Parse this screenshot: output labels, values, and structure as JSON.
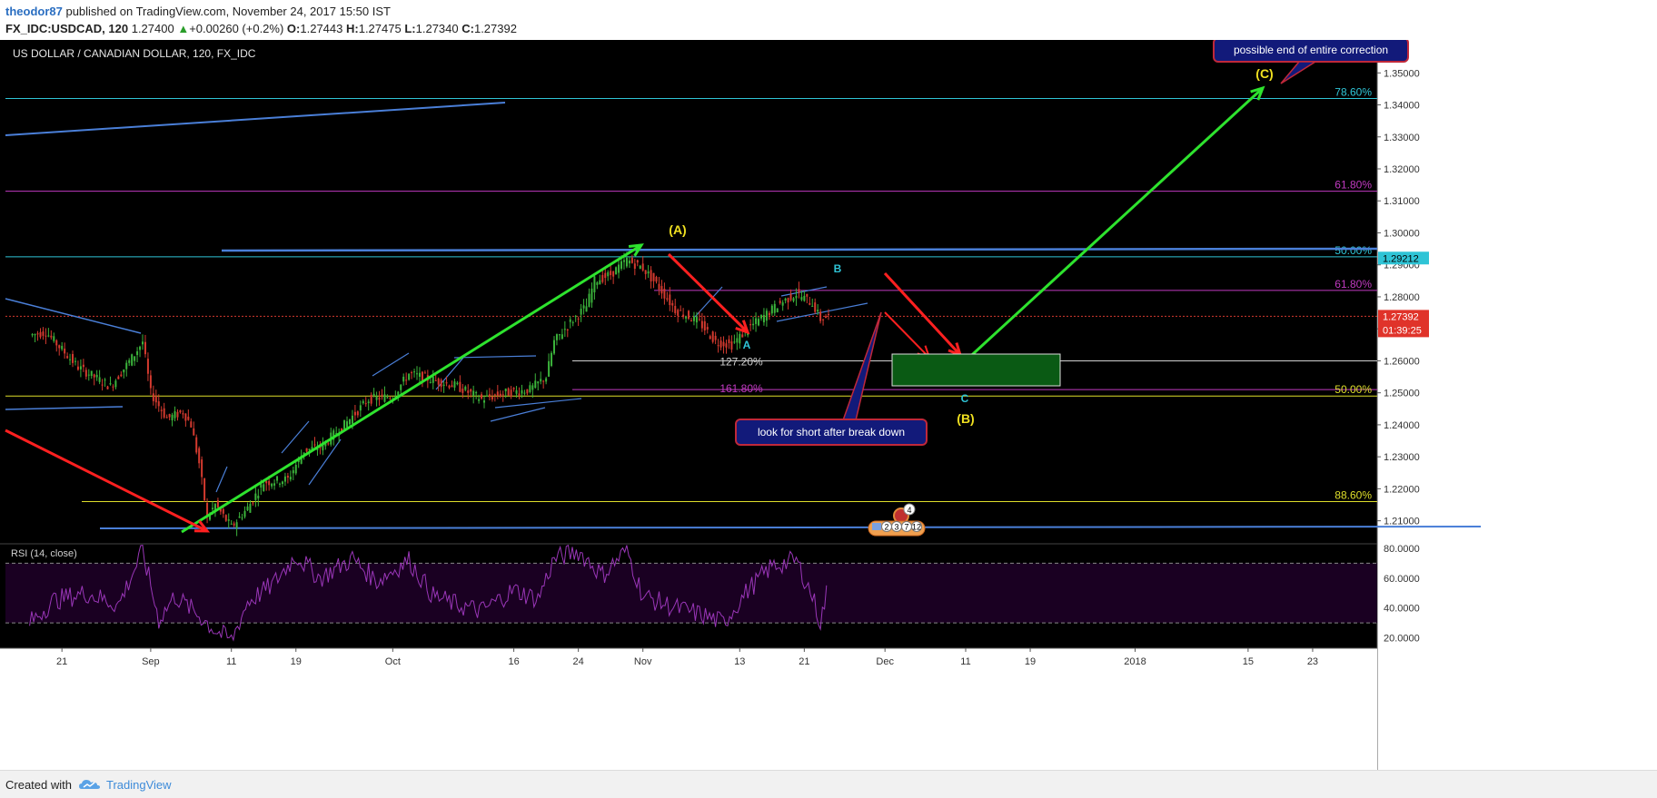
{
  "header": {
    "user": "theodor87",
    "published": "published on TradingView.com, November 24, 2017 15:50 IST",
    "symbol": "FX_IDC:USDCAD, 120",
    "last": "1.27400",
    "arrow": "▲",
    "change": "+0.00260 (+0.2%)",
    "o_label": "O:",
    "o": "1.27443",
    "h_label": "H:",
    "h": "1.27475",
    "l_label": "L:",
    "l": "1.27340",
    "c_label": "C:",
    "c": "1.27392"
  },
  "footer": {
    "created": "Created with",
    "brand": "TradingView",
    "logo_icon": "tradingview-cloud-icon"
  },
  "colors": {
    "bg": "#000000",
    "up": "#3bb33b",
    "down": "#d43a2f",
    "green_arrow": "#2ee32e",
    "red_arrow": "#ff2020",
    "trend": "#4a7fd8",
    "fib_cyan": "#2fc4d6",
    "fib_magenta": "#c03ac0",
    "fib_yellow": "#dede2a",
    "rsi": "#9a36b8"
  },
  "chart_data": {
    "type": "candlestick",
    "title": "US DOLLAR / CANADIAN DOLLAR, 120, FX_IDC",
    "ylim": [
      1.2028,
      1.3603
    ],
    "y_ticks": [
      "1.35000",
      "1.34000",
      "1.33000",
      "1.32000",
      "1.31000",
      "1.30000",
      "1.29000",
      "1.28000",
      "1.27000",
      "1.26000",
      "1.25000",
      "1.24000",
      "1.23000",
      "1.22000",
      "1.21000"
    ],
    "x_ticks": [
      "21",
      "Sep",
      "11",
      "19",
      "Oct",
      "16",
      "24",
      "Nov",
      "13",
      "21",
      "Dec",
      "11",
      "19",
      "2018",
      "15",
      "23"
    ],
    "x_tick_dates": [
      "2017-08-21",
      "2017-09-01",
      "2017-09-11",
      "2017-09-19",
      "2017-10-01",
      "2017-10-16",
      "2017-10-24",
      "2017-11-01",
      "2017-11-13",
      "2017-11-21",
      "2017-12-01",
      "2017-12-11",
      "2017-12-19",
      "2018-01-01",
      "2018-01-15",
      "2018-01-23"
    ],
    "price_path": [
      [
        "2017-08-17",
        1.268
      ],
      [
        "2017-08-19",
        1.269
      ],
      [
        "2017-08-23",
        1.258
      ],
      [
        "2017-08-27",
        1.252
      ],
      [
        "2017-08-30",
        1.262
      ],
      [
        "2017-08-31",
        1.266
      ],
      [
        "2017-09-01",
        1.25
      ],
      [
        "2017-09-03",
        1.242
      ],
      [
        "2017-09-05",
        1.244
      ],
      [
        "2017-09-06",
        1.24
      ],
      [
        "2017-09-07",
        1.228
      ],
      [
        "2017-09-08",
        1.211
      ],
      [
        "2017-09-09",
        1.215
      ],
      [
        "2017-09-11",
        1.208
      ],
      [
        "2017-09-13",
        1.214
      ],
      [
        "2017-09-15",
        1.222
      ],
      [
        "2017-09-18",
        1.223
      ],
      [
        "2017-09-20",
        1.232
      ],
      [
        "2017-09-22",
        1.233
      ],
      [
        "2017-09-25",
        1.24
      ],
      [
        "2017-09-28",
        1.248
      ],
      [
        "2017-10-01",
        1.249
      ],
      [
        "2017-10-03",
        1.256
      ],
      [
        "2017-10-06",
        1.254
      ],
      [
        "2017-10-09",
        1.252
      ],
      [
        "2017-10-12",
        1.248
      ],
      [
        "2017-10-15",
        1.25
      ],
      [
        "2017-10-18",
        1.251
      ],
      [
        "2017-10-20",
        1.255
      ],
      [
        "2017-10-21",
        1.266
      ],
      [
        "2017-10-23",
        1.272
      ],
      [
        "2017-10-25",
        1.277
      ],
      [
        "2017-10-26",
        1.285
      ],
      [
        "2017-10-28",
        1.287
      ],
      [
        "2017-10-30",
        1.2915
      ],
      [
        "2017-11-01",
        1.289
      ],
      [
        "2017-11-03",
        1.283
      ],
      [
        "2017-11-05",
        1.276
      ],
      [
        "2017-11-08",
        1.272
      ],
      [
        "2017-11-10",
        1.266
      ],
      [
        "2017-11-12",
        1.265
      ],
      [
        "2017-11-14",
        1.27
      ],
      [
        "2017-11-16",
        1.274
      ],
      [
        "2017-11-18",
        1.278
      ],
      [
        "2017-11-20",
        1.281
      ],
      [
        "2017-11-22",
        1.278
      ],
      [
        "2017-11-23",
        1.273
      ],
      [
        "2017-11-24",
        1.2739
      ]
    ],
    "rsi": {
      "label": "RSI (14, close)",
      "ylim": [
        13,
        83
      ],
      "ticks": [
        "80.0000",
        "60.0000",
        "40.0000",
        "20.0000"
      ],
      "bands": [
        70,
        30
      ],
      "path": [
        [
          "2017-08-17",
          30
        ],
        [
          "2017-08-20",
          45
        ],
        [
          "2017-08-24",
          50
        ],
        [
          "2017-08-28",
          42
        ],
        [
          "2017-08-31",
          78
        ],
        [
          "2017-09-02",
          32
        ],
        [
          "2017-09-04",
          48
        ],
        [
          "2017-09-07",
          35
        ],
        [
          "2017-09-09",
          25
        ],
        [
          "2017-09-11",
          18
        ],
        [
          "2017-09-13",
          44
        ],
        [
          "2017-09-16",
          55
        ],
        [
          "2017-09-19",
          75
        ],
        [
          "2017-09-22",
          60
        ],
        [
          "2017-09-26",
          73
        ],
        [
          "2017-09-29",
          58
        ],
        [
          "2017-10-03",
          72
        ],
        [
          "2017-10-06",
          48
        ],
        [
          "2017-10-09",
          42
        ],
        [
          "2017-10-12",
          38
        ],
        [
          "2017-10-16",
          52
        ],
        [
          "2017-10-19",
          46
        ],
        [
          "2017-10-21",
          73
        ],
        [
          "2017-10-24",
          78
        ],
        [
          "2017-10-27",
          62
        ],
        [
          "2017-10-30",
          79
        ],
        [
          "2017-11-01",
          48
        ],
        [
          "2017-11-05",
          40
        ],
        [
          "2017-11-08",
          36
        ],
        [
          "2017-11-11",
          30
        ],
        [
          "2017-11-14",
          52
        ],
        [
          "2017-11-17",
          68
        ],
        [
          "2017-11-20",
          72
        ],
        [
          "2017-11-22",
          48
        ],
        [
          "2017-11-23",
          30
        ],
        [
          "2017-11-24",
          56
        ]
      ]
    },
    "current_price": "1.27392",
    "countdown": "01:39:25",
    "level_tag": "1.29212",
    "fib_levels": [
      {
        "label": "78.60%",
        "price": 1.342,
        "color": "#2fc4d6"
      },
      {
        "label": "61.80%",
        "price": 1.313,
        "color": "#c03ac0"
      },
      {
        "label": "50.00%",
        "price": 1.2925,
        "color": "#2fc4d6"
      },
      {
        "label": "61.80%",
        "price": 1.282,
        "color": "#c03ac0"
      },
      {
        "label": "127.20%",
        "price": 1.26,
        "color": "#cfcfcf"
      },
      {
        "label": "161.80%",
        "price": 1.251,
        "color": "#c03ac0"
      },
      {
        "label": "50.00%",
        "price": 1.249,
        "color": "#dede2a"
      },
      {
        "label": "88.60%",
        "price": 1.216,
        "color": "#dede2a"
      }
    ],
    "annotations": {
      "wave_a": "(A)",
      "wave_b": "(B)",
      "wave_c": "(C)",
      "minor_a": "A",
      "minor_b": "B",
      "minor_c": "C",
      "callout_top": "possible end of entire correction",
      "callout_bottom": "look for short after break down"
    },
    "event_badges": [
      "4",
      "2",
      "3",
      "7",
      "12"
    ]
  }
}
